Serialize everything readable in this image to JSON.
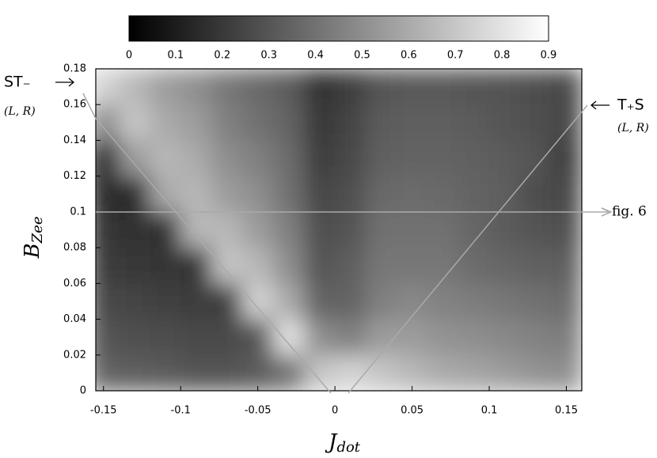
{
  "chart_data": {
    "type": "heatmap",
    "xlabel": {
      "main": "J",
      "sub": "dot"
    },
    "ylabel": {
      "main": "B",
      "sub": "Zee"
    },
    "xlim": [
      -0.155,
      0.16
    ],
    "ylim": [
      0,
      0.18
    ],
    "xticks": [
      -0.15,
      -0.1,
      -0.05,
      0,
      0.05,
      0.1,
      0.15
    ],
    "yticks": [
      0,
      0.02,
      0.04,
      0.06,
      0.08,
      0.1,
      0.12,
      0.14,
      0.16,
      0.18
    ],
    "x": [
      -0.15,
      -0.13,
      -0.11,
      -0.09,
      -0.07,
      -0.05,
      -0.03,
      -0.01,
      0.01,
      0.03,
      0.05,
      0.07,
      0.09,
      0.11,
      0.13,
      0.15
    ],
    "y": [
      0.01,
      0.03,
      0.05,
      0.07,
      0.09,
      0.11,
      0.13,
      0.15,
      0.17
    ],
    "z": [
      [
        0.35,
        0.33,
        0.32,
        0.3,
        0.3,
        0.32,
        0.4,
        0.7,
        0.75,
        0.7,
        0.65,
        0.6,
        0.58,
        0.55,
        0.52,
        0.5
      ],
      [
        0.3,
        0.28,
        0.27,
        0.26,
        0.26,
        0.3,
        0.8,
        0.5,
        0.45,
        0.55,
        0.55,
        0.52,
        0.5,
        0.48,
        0.46,
        0.44
      ],
      [
        0.26,
        0.24,
        0.23,
        0.22,
        0.22,
        0.75,
        0.6,
        0.35,
        0.35,
        0.45,
        0.48,
        0.46,
        0.44,
        0.42,
        0.4,
        0.38
      ],
      [
        0.22,
        0.2,
        0.19,
        0.18,
        0.7,
        0.65,
        0.5,
        0.3,
        0.33,
        0.42,
        0.42,
        0.42,
        0.38,
        0.36,
        0.34,
        0.33
      ],
      [
        0.19,
        0.17,
        0.16,
        0.65,
        0.65,
        0.55,
        0.45,
        0.28,
        0.3,
        0.4,
        0.4,
        0.4,
        0.36,
        0.32,
        0.3,
        0.28
      ],
      [
        0.16,
        0.14,
        0.6,
        0.65,
        0.55,
        0.5,
        0.4,
        0.25,
        0.28,
        0.37,
        0.38,
        0.37,
        0.35,
        0.33,
        0.27,
        0.25
      ],
      [
        0.13,
        0.55,
        0.65,
        0.6,
        0.5,
        0.45,
        0.38,
        0.22,
        0.26,
        0.34,
        0.35,
        0.35,
        0.34,
        0.32,
        0.3,
        0.22
      ],
      [
        0.5,
        0.7,
        0.6,
        0.55,
        0.45,
        0.4,
        0.35,
        0.2,
        0.24,
        0.32,
        0.33,
        0.33,
        0.32,
        0.3,
        0.28,
        0.25
      ],
      [
        0.75,
        0.65,
        0.55,
        0.5,
        0.42,
        0.37,
        0.32,
        0.18,
        0.22,
        0.3,
        0.31,
        0.31,
        0.3,
        0.29,
        0.27,
        0.25
      ]
    ],
    "colorbar": {
      "lim": [
        0,
        0.9
      ],
      "ticks": [
        0,
        0.1,
        0.2,
        0.3,
        0.4,
        0.5,
        0.6,
        0.7,
        0.8,
        0.9
      ]
    },
    "annotations": {
      "left": "ST₋",
      "left_sub": "(L, R)",
      "right": "T₊S",
      "right_sub": "(L, R)",
      "line": "fig. 6"
    }
  }
}
